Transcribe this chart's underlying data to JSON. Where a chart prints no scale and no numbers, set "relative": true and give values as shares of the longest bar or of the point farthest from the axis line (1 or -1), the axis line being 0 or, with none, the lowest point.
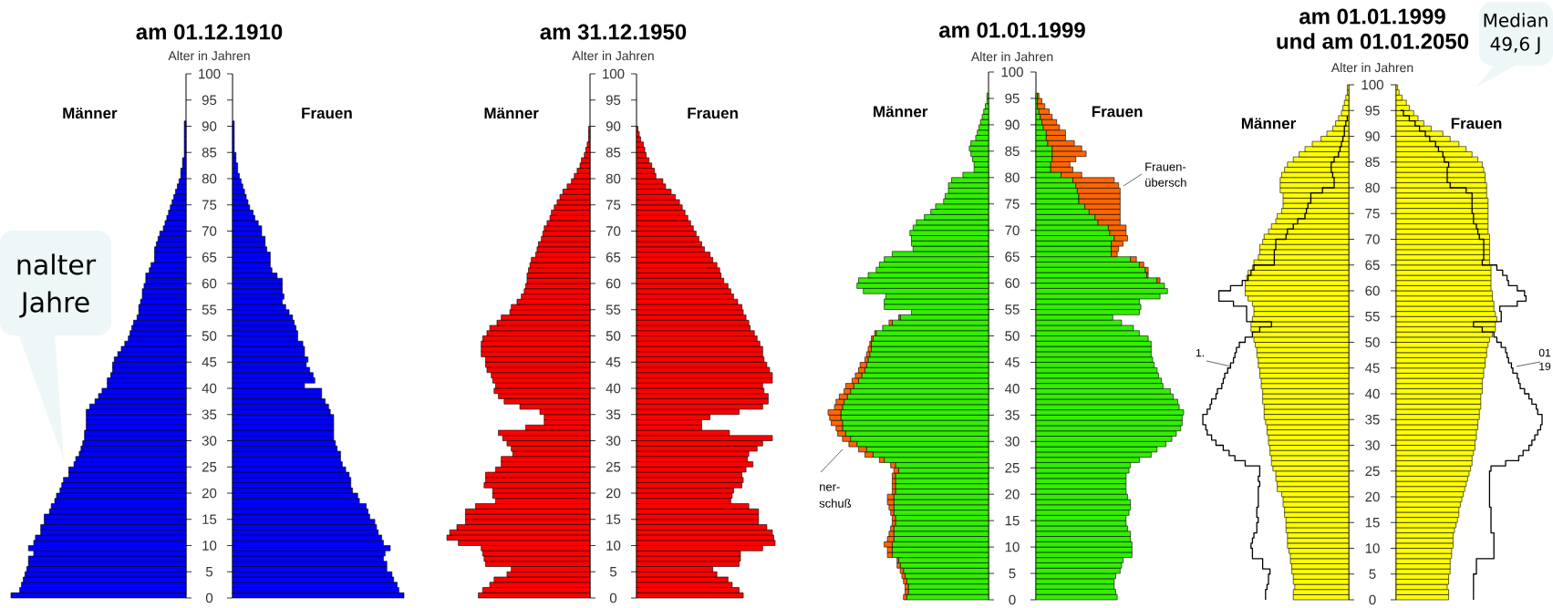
{
  "chart_data": [
    {
      "type": "bar",
      "orientation": "horizontal",
      "relative": true,
      "title": "am 01.12.1910",
      "ylabel": "Alter in Jahren",
      "ylim": [
        0,
        100
      ],
      "yticks": [
        0,
        5,
        10,
        15,
        20,
        25,
        30,
        35,
        40,
        45,
        50,
        55,
        60,
        65,
        70,
        75,
        80,
        85,
        90,
        95,
        100
      ],
      "x": [
        0,
        1,
        2,
        3,
        4,
        5,
        6,
        7,
        8,
        9,
        10,
        11,
        12,
        13,
        14,
        15,
        16,
        17,
        18,
        19,
        20,
        21,
        22,
        23,
        24,
        25,
        26,
        27,
        28,
        29,
        30,
        31,
        32,
        33,
        34,
        35,
        36,
        37,
        38,
        39,
        40,
        41,
        42,
        43,
        44,
        45,
        46,
        47,
        48,
        49,
        50,
        51,
        52,
        53,
        54,
        55,
        56,
        57,
        58,
        59,
        60,
        61,
        62,
        63,
        64,
        65,
        66,
        67,
        68,
        69,
        70,
        71,
        72,
        73,
        74,
        75,
        76,
        77,
        78,
        79,
        80,
        81,
        82,
        83,
        84,
        85,
        86,
        87,
        88,
        89,
        90
      ],
      "series": [
        {
          "name": "Männer",
          "color": "#0000ff",
          "values": [
            -1.0,
            -0.95,
            -0.94,
            -0.93,
            -0.92,
            -0.91,
            -0.9,
            -0.9,
            -0.87,
            -0.9,
            -0.87,
            -0.86,
            -0.83,
            -0.83,
            -0.81,
            -0.81,
            -0.78,
            -0.77,
            -0.75,
            -0.74,
            -0.72,
            -0.71,
            -0.7,
            -0.67,
            -0.67,
            -0.64,
            -0.63,
            -0.61,
            -0.6,
            -0.59,
            -0.58,
            -0.58,
            -0.57,
            -0.57,
            -0.57,
            -0.57,
            -0.55,
            -0.52,
            -0.5,
            -0.48,
            -0.45,
            -0.45,
            -0.43,
            -0.42,
            -0.42,
            -0.41,
            -0.39,
            -0.37,
            -0.35,
            -0.33,
            -0.32,
            -0.31,
            -0.3,
            -0.28,
            -0.27,
            -0.27,
            -0.26,
            -0.25,
            -0.25,
            -0.24,
            -0.23,
            -0.23,
            -0.21,
            -0.2,
            -0.18,
            -0.18,
            -0.18,
            -0.17,
            -0.16,
            -0.15,
            -0.13,
            -0.12,
            -0.11,
            -0.1,
            -0.09,
            -0.08,
            -0.07,
            -0.06,
            -0.05,
            -0.04,
            -0.03,
            -0.03,
            -0.02,
            -0.02,
            -0.01,
            -0.01,
            -0.01,
            -0.01,
            -0.01,
            -0.01,
            -0.01
          ]
        }
      ],
      "annotations": [
        "nalter",
        "Jahre"
      ]
    },
    {
      "type": "bar",
      "orientation": "horizontal",
      "relative": true,
      "tick_labels": false,
      "ylim": [
        0,
        100
      ],
      "yticks": [
        0,
        5,
        10,
        15,
        20,
        25,
        30,
        35,
        40,
        45,
        50,
        55,
        60,
        65,
        70,
        75,
        80,
        85,
        90,
        95,
        100
      ],
      "x": [
        0,
        1,
        2,
        3,
        4,
        5,
        6,
        7,
        8,
        9,
        10,
        11,
        12,
        13,
        14,
        15,
        16,
        17,
        18,
        19,
        20,
        21,
        22,
        23,
        24,
        25,
        26,
        27,
        28,
        29,
        30,
        31,
        32,
        33,
        34,
        35,
        36,
        37,
        38,
        39,
        40,
        41,
        42,
        43,
        44,
        45,
        46,
        47,
        48,
        49,
        50,
        51,
        52,
        53,
        54,
        55,
        56,
        57,
        58,
        59,
        60,
        61,
        62,
        63,
        64,
        65,
        66,
        67,
        68,
        69,
        70,
        71,
        72,
        73,
        74,
        75,
        76,
        77,
        78,
        79,
        80,
        81,
        82,
        83,
        84,
        85,
        86,
        87,
        88,
        89,
        90
      ],
      "series": [
        {
          "name": "Frauen",
          "color": "#0000ff",
          "values": [
            1.0,
            0.97,
            0.96,
            0.94,
            0.93,
            0.9,
            0.9,
            0.88,
            0.89,
            0.92,
            0.88,
            0.87,
            0.85,
            0.84,
            0.83,
            0.8,
            0.79,
            0.78,
            0.74,
            0.73,
            0.7,
            0.69,
            0.69,
            0.68,
            0.66,
            0.64,
            0.63,
            0.63,
            0.61,
            0.6,
            0.59,
            0.59,
            0.59,
            0.59,
            0.59,
            0.57,
            0.56,
            0.54,
            0.52,
            0.52,
            0.42,
            0.48,
            0.47,
            0.45,
            0.43,
            0.44,
            0.42,
            0.42,
            0.41,
            0.38,
            0.38,
            0.37,
            0.36,
            0.35,
            0.33,
            0.31,
            0.29,
            0.3,
            0.29,
            0.29,
            0.29,
            0.26,
            0.23,
            0.22,
            0.22,
            0.22,
            0.2,
            0.19,
            0.19,
            0.17,
            0.17,
            0.15,
            0.13,
            0.12,
            0.1,
            0.09,
            0.08,
            0.07,
            0.06,
            0.05,
            0.04,
            0.03,
            0.03,
            0.02,
            0.02,
            0.01,
            0.01,
            0.01,
            0.01,
            0.01,
            0.01
          ]
        }
      ]
    },
    {
      "type": "bar",
      "orientation": "horizontal",
      "relative": true,
      "title": "am 31.12.1950",
      "ylabel": "Alter in Jahren",
      "ylim": [
        0,
        100
      ],
      "yticks": [
        0,
        5,
        10,
        15,
        20,
        25,
        30,
        35,
        40,
        45,
        50,
        55,
        60,
        65,
        70,
        75,
        80,
        85,
        90,
        95,
        100
      ],
      "x": [
        0,
        1,
        2,
        3,
        4,
        5,
        6,
        7,
        8,
        9,
        10,
        11,
        12,
        13,
        14,
        15,
        16,
        17,
        18,
        19,
        20,
        21,
        22,
        23,
        24,
        25,
        26,
        27,
        28,
        29,
        30,
        31,
        32,
        33,
        34,
        35,
        36,
        37,
        38,
        39,
        40,
        41,
        42,
        43,
        44,
        45,
        46,
        47,
        48,
        49,
        50,
        51,
        52,
        53,
        54,
        55,
        56,
        57,
        58,
        59,
        60,
        61,
        62,
        63,
        64,
        65,
        66,
        67,
        68,
        69,
        70,
        71,
        72,
        73,
        74,
        75,
        76,
        77,
        78,
        79,
        80,
        81,
        82,
        83,
        84,
        85,
        86,
        87,
        88,
        89
      ],
      "series": [
        {
          "name": "Männer",
          "color": "#ff0000",
          "values": [
            -0.78,
            -0.75,
            -0.7,
            -0.67,
            -0.58,
            -0.55,
            -0.73,
            -0.74,
            -0.75,
            -0.76,
            -0.92,
            -1.0,
            -0.98,
            -0.93,
            -0.87,
            -0.87,
            -0.87,
            -0.8,
            -0.66,
            -0.68,
            -0.68,
            -0.74,
            -0.73,
            -0.73,
            -0.66,
            -0.62,
            -0.62,
            -0.54,
            -0.55,
            -0.58,
            -0.61,
            -0.64,
            -0.45,
            -0.32,
            -0.32,
            -0.35,
            -0.49,
            -0.6,
            -0.64,
            -0.67,
            -0.66,
            -0.68,
            -0.69,
            -0.72,
            -0.73,
            -0.73,
            -0.76,
            -0.76,
            -0.76,
            -0.75,
            -0.72,
            -0.7,
            -0.65,
            -0.62,
            -0.56,
            -0.55,
            -0.51,
            -0.48,
            -0.46,
            -0.45,
            -0.44,
            -0.44,
            -0.43,
            -0.42,
            -0.41,
            -0.38,
            -0.37,
            -0.36,
            -0.34,
            -0.33,
            -0.32,
            -0.3,
            -0.28,
            -0.27,
            -0.25,
            -0.23,
            -0.21,
            -0.19,
            -0.16,
            -0.13,
            -0.11,
            -0.09,
            -0.07,
            -0.06,
            -0.04,
            -0.03,
            -0.02,
            -0.01,
            -0.01,
            -0.01
          ]
        }
      ]
    },
    {
      "type": "bar",
      "orientation": "horizontal",
      "relative": true,
      "tick_labels": false,
      "ylim": [
        0,
        100
      ],
      "yticks": [
        0,
        5,
        10,
        15,
        20,
        25,
        30,
        35,
        40,
        45,
        50,
        55,
        60,
        65,
        70,
        75,
        80,
        85,
        90,
        95,
        100
      ],
      "x": [
        0,
        1,
        2,
        3,
        4,
        5,
        6,
        7,
        8,
        9,
        10,
        11,
        12,
        13,
        14,
        15,
        16,
        17,
        18,
        19,
        20,
        21,
        22,
        23,
        24,
        25,
        26,
        27,
        28,
        29,
        30,
        31,
        32,
        33,
        34,
        35,
        36,
        37,
        38,
        39,
        40,
        41,
        42,
        43,
        44,
        45,
        46,
        47,
        48,
        49,
        50,
        51,
        52,
        53,
        54,
        55,
        56,
        57,
        58,
        59,
        60,
        61,
        62,
        63,
        64,
        65,
        66,
        67,
        68,
        69,
        70,
        71,
        72,
        73,
        74,
        75,
        76,
        77,
        78,
        79,
        80,
        81,
        82,
        83,
        84,
        85,
        86,
        87,
        88,
        89
      ],
      "series": [
        {
          "name": "Frauen",
          "color": "#ff0000",
          "values": [
            0.77,
            0.74,
            0.69,
            0.66,
            0.58,
            0.55,
            0.74,
            0.75,
            0.75,
            0.91,
            1.0,
            0.99,
            0.98,
            0.94,
            0.88,
            0.88,
            0.88,
            0.81,
            0.68,
            0.69,
            0.7,
            0.76,
            0.77,
            0.76,
            0.79,
            0.84,
            0.8,
            0.81,
            0.87,
            0.91,
            0.98,
            0.67,
            0.47,
            0.47,
            0.53,
            0.74,
            0.91,
            0.95,
            0.95,
            0.92,
            0.91,
            0.98,
            0.98,
            0.96,
            0.94,
            0.92,
            0.91,
            0.91,
            0.89,
            0.87,
            0.85,
            0.82,
            0.81,
            0.79,
            0.77,
            0.76,
            0.73,
            0.7,
            0.68,
            0.66,
            0.63,
            0.61,
            0.6,
            0.58,
            0.55,
            0.53,
            0.49,
            0.47,
            0.45,
            0.43,
            0.41,
            0.39,
            0.37,
            0.35,
            0.33,
            0.31,
            0.28,
            0.25,
            0.21,
            0.19,
            0.14,
            0.13,
            0.11,
            0.09,
            0.07,
            0.06,
            0.05,
            0.03,
            0.02,
            0.01
          ]
        }
      ]
    },
    {
      "type": "bar",
      "orientation": "horizontal",
      "relative": true,
      "stacked": true,
      "title": "am 01.01.1999",
      "ylabel": "Alter in Jahren",
      "ylim": [
        0,
        100
      ],
      "yticks": [
        0,
        5,
        10,
        15,
        20,
        25,
        30,
        35,
        40,
        45,
        50,
        55,
        60,
        65,
        70,
        75,
        80,
        85,
        90,
        95,
        100
      ],
      "x": [
        0,
        1,
        2,
        3,
        4,
        5,
        6,
        7,
        8,
        9,
        10,
        11,
        12,
        13,
        14,
        15,
        16,
        17,
        18,
        19,
        20,
        21,
        22,
        23,
        24,
        25,
        26,
        27,
        28,
        29,
        30,
        31,
        32,
        33,
        34,
        35,
        36,
        37,
        38,
        39,
        40,
        41,
        42,
        43,
        44,
        45,
        46,
        47,
        48,
        49,
        50,
        51,
        52,
        53,
        54,
        55,
        56,
        57,
        58,
        59,
        60,
        61,
        62,
        63,
        64,
        65,
        66,
        67,
        68,
        69,
        70,
        71,
        72,
        73,
        74,
        75,
        76,
        77,
        78,
        79,
        80,
        81,
        82,
        83,
        84,
        85,
        86,
        87,
        88,
        89,
        90,
        91,
        92,
        93,
        94,
        95
      ],
      "series": [
        {
          "name": "Männer",
          "color": "#33ee00",
          "values": [
            -0.51,
            -0.5,
            -0.5,
            -0.51,
            -0.52,
            -0.53,
            -0.55,
            -0.56,
            -0.6,
            -0.6,
            -0.6,
            -0.59,
            -0.59,
            -0.59,
            -0.58,
            -0.58,
            -0.59,
            -0.59,
            -0.59,
            -0.59,
            -0.58,
            -0.58,
            -0.58,
            -0.58,
            -0.56,
            -0.58,
            -0.65,
            -0.72,
            -0.76,
            -0.82,
            -0.86,
            -0.89,
            -0.91,
            -0.91,
            -0.92,
            -0.92,
            -0.91,
            -0.9,
            -0.88,
            -0.86,
            -0.84,
            -0.81,
            -0.79,
            -0.77,
            -0.76,
            -0.75,
            -0.74,
            -0.73,
            -0.73,
            -0.72,
            -0.7,
            -0.66,
            -0.6,
            -0.55,
            -0.48,
            -0.65,
            -0.65,
            -0.64,
            -0.78,
            -0.82,
            -0.81,
            -0.75,
            -0.7,
            -0.68,
            -0.65,
            -0.6,
            -0.47,
            -0.48,
            -0.48,
            -0.49,
            -0.47,
            -0.45,
            -0.4,
            -0.36,
            -0.33,
            -0.28,
            -0.27,
            -0.25,
            -0.25,
            -0.23,
            -0.16,
            -0.09,
            -0.09,
            -0.1,
            -0.11,
            -0.12,
            -0.11,
            -0.08,
            -0.07,
            -0.06,
            -0.05,
            -0.04,
            -0.03,
            -0.02,
            -0.01,
            -0.01
          ]
        },
        {
          "color": "#ff6600",
          "values": [
            -0.02,
            -0.02,
            -0.02,
            -0.02,
            -0.02,
            -0.02,
            -0.02,
            -0.01,
            -0.03,
            -0.03,
            -0.05,
            -0.04,
            -0.03,
            -0.02,
            -0.02,
            -0.02,
            -0.02,
            -0.03,
            -0.04,
            -0.04,
            -0.02,
            -0.02,
            -0.02,
            -0.02,
            -0.03,
            -0.03,
            -0.03,
            -0.05,
            -0.05,
            -0.05,
            -0.05,
            -0.05,
            -0.04,
            -0.07,
            -0.07,
            -0.08,
            -0.05,
            -0.05,
            -0.05,
            -0.04,
            -0.05,
            -0.04,
            -0.04,
            -0.04,
            -0.04,
            -0.02,
            -0.02,
            -0.02,
            -0.01,
            -0.01,
            -0.01,
            null,
            -0.02,
            -0.01,
            null,
            null,
            null,
            null,
            null,
            null,
            null,
            null,
            null,
            null,
            null,
            null,
            null,
            null,
            null,
            null,
            null,
            null,
            null,
            null,
            null,
            null,
            null,
            null,
            null,
            null,
            null,
            null,
            null,
            null,
            null,
            null,
            null,
            null,
            null,
            null,
            null,
            null,
            null,
            null,
            null,
            null
          ]
        }
      ],
      "annotations": [
        "ner-",
        "schuß"
      ]
    },
    {
      "type": "bar",
      "orientation": "horizontal",
      "relative": true,
      "stacked": true,
      "tick_labels": false,
      "ylim": [
        0,
        100
      ],
      "yticks": [
        0,
        5,
        10,
        15,
        20,
        25,
        30,
        35,
        40,
        45,
        50,
        55,
        60,
        65,
        70,
        75,
        80,
        85,
        90,
        95,
        100
      ],
      "x": [
        0,
        1,
        2,
        3,
        4,
        5,
        6,
        7,
        8,
        9,
        10,
        11,
        12,
        13,
        14,
        15,
        16,
        17,
        18,
        19,
        20,
        21,
        22,
        23,
        24,
        25,
        26,
        27,
        28,
        29,
        30,
        31,
        32,
        33,
        34,
        35,
        36,
        37,
        38,
        39,
        40,
        41,
        42,
        43,
        44,
        45,
        46,
        47,
        48,
        49,
        50,
        51,
        52,
        53,
        54,
        55,
        56,
        57,
        58,
        59,
        60,
        61,
        62,
        63,
        64,
        65,
        66,
        67,
        68,
        69,
        70,
        71,
        72,
        73,
        74,
        75,
        76,
        77,
        78,
        79,
        80,
        81,
        82,
        83,
        84,
        85,
        86,
        87,
        88,
        89,
        90,
        91,
        92,
        93,
        94,
        95
      ],
      "series": [
        {
          "name": "Frauen",
          "color": "#33ee00",
          "values": [
            0.55,
            0.54,
            0.53,
            0.53,
            0.54,
            0.57,
            0.58,
            0.59,
            0.65,
            0.65,
            0.65,
            0.64,
            0.64,
            0.62,
            0.61,
            0.61,
            0.63,
            0.64,
            0.64,
            0.62,
            0.61,
            0.61,
            0.61,
            0.61,
            0.63,
            0.64,
            0.7,
            0.78,
            0.82,
            0.88,
            0.92,
            0.95,
            0.98,
            0.99,
            0.99,
            1.0,
            0.97,
            0.96,
            0.93,
            0.91,
            0.86,
            0.85,
            0.83,
            0.82,
            0.8,
            0.79,
            0.78,
            0.78,
            0.78,
            0.76,
            0.7,
            0.66,
            0.58,
            0.52,
            0.7,
            0.71,
            0.7,
            0.84,
            0.89,
            0.87,
            0.82,
            0.75,
            0.74,
            0.7,
            0.64,
            0.51,
            0.51,
            0.51,
            0.53,
            0.5,
            0.49,
            0.42,
            0.4,
            0.36,
            0.33,
            0.29,
            0.29,
            0.28,
            0.27,
            0.25,
            0.17,
            0.1,
            0.1,
            0.11,
            0.11,
            0.11,
            0.08,
            0.07,
            0.07,
            0.05,
            0.04,
            0.03,
            0.02,
            0.01,
            0.01,
            0.01
          ]
        },
        {
          "color": "#ff6600",
          "values": [
            null,
            null,
            null,
            null,
            null,
            null,
            null,
            null,
            null,
            null,
            null,
            null,
            null,
            null,
            null,
            null,
            null,
            null,
            null,
            null,
            null,
            null,
            null,
            null,
            null,
            null,
            null,
            null,
            null,
            null,
            null,
            null,
            null,
            null,
            null,
            null,
            null,
            null,
            null,
            null,
            null,
            null,
            null,
            null,
            null,
            null,
            null,
            null,
            null,
            null,
            null,
            null,
            null,
            null,
            null,
            null,
            null,
            null,
            null,
            null,
            0.02,
            0.01,
            0.02,
            0.03,
            0.04,
            0.04,
            0.05,
            0.08,
            0.09,
            0.11,
            0.12,
            0.15,
            0.17,
            0.21,
            0.24,
            0.28,
            0.28,
            0.29,
            0.29,
            0.28,
            0.14,
            0.15,
            0.13,
            0.16,
            0.23,
            0.2,
            0.18,
            0.13,
            0.13,
            0.11,
            0.1,
            0.08,
            0.07,
            0.05,
            0.03,
            0.01
          ]
        }
      ],
      "annotations": [
        "Frauen-",
        "übersch"
      ]
    },
    {
      "type": "bar",
      "orientation": "horizontal",
      "relative": true,
      "title": "am 01.01.1999",
      "subtitle": "und am 01.01.2050",
      "ylabel": "Alter in Jahren",
      "ylim": [
        0,
        100
      ],
      "yticks": [
        0,
        5,
        10,
        15,
        20,
        25,
        30,
        35,
        40,
        45,
        50,
        55,
        60,
        65,
        70,
        75,
        80,
        85,
        90,
        95,
        100
      ],
      "x": [
        0,
        1,
        2,
        3,
        4,
        5,
        6,
        7,
        8,
        9,
        10,
        11,
        12,
        13,
        14,
        15,
        16,
        17,
        18,
        19,
        20,
        21,
        22,
        23,
        24,
        25,
        26,
        27,
        28,
        29,
        30,
        31,
        32,
        33,
        34,
        35,
        36,
        37,
        38,
        39,
        40,
        41,
        42,
        43,
        44,
        45,
        46,
        47,
        48,
        49,
        50,
        51,
        52,
        53,
        54,
        55,
        56,
        57,
        58,
        59,
        60,
        61,
        62,
        63,
        64,
        65,
        66,
        67,
        68,
        69,
        70,
        71,
        72,
        73,
        74,
        75,
        76,
        77,
        78,
        79,
        80,
        81,
        82,
        83,
        84,
        85,
        86,
        87,
        88,
        89,
        90,
        91,
        92,
        93,
        94,
        95,
        96,
        97,
        98,
        99
      ],
      "series": [
        {
          "name": "Männer",
          "color": "#ffff00",
          "values": [
            -0.38,
            -0.38,
            -0.37,
            -0.38,
            -0.38,
            -0.39,
            -0.39,
            -0.4,
            -0.4,
            -0.41,
            -0.42,
            -0.42,
            -0.42,
            -0.43,
            -0.43,
            -0.43,
            -0.44,
            -0.44,
            -0.45,
            -0.45,
            -0.46,
            -0.49,
            -0.49,
            -0.5,
            -0.5,
            -0.52,
            -0.53,
            -0.53,
            -0.54,
            -0.54,
            -0.55,
            -0.55,
            -0.56,
            -0.56,
            -0.57,
            -0.58,
            -0.58,
            -0.58,
            -0.59,
            -0.59,
            -0.59,
            -0.6,
            -0.6,
            -0.61,
            -0.61,
            -0.62,
            -0.62,
            -0.63,
            -0.63,
            -0.64,
            -0.65,
            -0.66,
            -0.67,
            -0.67,
            -0.66,
            -0.65,
            -0.65,
            -0.66,
            -0.69,
            -0.71,
            -0.71,
            -0.71,
            -0.7,
            -0.69,
            -0.66,
            -0.65,
            -0.62,
            -0.61,
            -0.61,
            -0.59,
            -0.58,
            -0.55,
            -0.53,
            -0.5,
            -0.49,
            -0.46,
            -0.45,
            -0.45,
            -0.45,
            -0.47,
            -0.47,
            -0.47,
            -0.46,
            -0.44,
            -0.42,
            -0.38,
            -0.34,
            -0.3,
            -0.25,
            -0.19,
            -0.15,
            -0.11,
            -0.09,
            -0.07,
            -0.05,
            -0.04,
            -0.03,
            -0.02,
            -0.01,
            -0.01
          ]
        },
        {
          "type": "step",
          "color": "#000000",
          "values": [
            -0.57,
            -0.57,
            -0.56,
            -0.55,
            -0.55,
            -0.54,
            -0.59,
            -0.59,
            -0.66,
            -0.66,
            -0.67,
            -0.66,
            -0.65,
            -0.63,
            -0.63,
            -0.62,
            -0.63,
            -0.63,
            -0.62,
            -0.62,
            -0.62,
            -0.62,
            -0.61,
            -0.62,
            -0.61,
            -0.61,
            -0.71,
            -0.78,
            -0.82,
            -0.86,
            -0.91,
            -0.94,
            -0.97,
            -0.98,
            -1.0,
            -1.0,
            -0.97,
            -0.95,
            -0.94,
            -0.91,
            -0.9,
            -0.87,
            -0.86,
            -0.85,
            -0.83,
            -0.81,
            -0.79,
            -0.78,
            -0.77,
            -0.75,
            -0.71,
            -0.66,
            -0.61,
            -0.53,
            -0.7,
            -0.7,
            -0.7,
            -0.79,
            -0.89,
            -0.89,
            -0.81,
            -0.73,
            -0.69,
            -0.67,
            -0.65,
            -0.51,
            -0.51,
            -0.51,
            -0.5,
            -0.5,
            -0.43,
            -0.42,
            -0.38,
            -0.35,
            -0.3,
            -0.29,
            -0.28,
            -0.26,
            -0.26,
            -0.18,
            -0.1,
            -0.1,
            -0.11,
            -0.12,
            -0.12,
            -0.1,
            -0.07,
            -0.06,
            -0.05,
            -0.04,
            -0.03,
            -0.03,
            -0.02,
            -0.01,
            -0.01,
            null,
            null,
            null,
            null,
            null
          ]
        }
      ],
      "annotations": [
        "1."
      ]
    },
    {
      "type": "bar",
      "orientation": "horizontal",
      "relative": true,
      "tick_labels": false,
      "ylim": [
        0,
        100
      ],
      "yticks": [
        0,
        5,
        10,
        15,
        20,
        25,
        30,
        35,
        40,
        45,
        50,
        55,
        60,
        65,
        70,
        75,
        80,
        85,
        90,
        95,
        100
      ],
      "x": [
        0,
        1,
        2,
        3,
        4,
        5,
        6,
        7,
        8,
        9,
        10,
        11,
        12,
        13,
        14,
        15,
        16,
        17,
        18,
        19,
        20,
        21,
        22,
        23,
        24,
        25,
        26,
        27,
        28,
        29,
        30,
        31,
        32,
        33,
        34,
        35,
        36,
        37,
        38,
        39,
        40,
        41,
        42,
        43,
        44,
        45,
        46,
        47,
        48,
        49,
        50,
        51,
        52,
        53,
        54,
        55,
        56,
        57,
        58,
        59,
        60,
        61,
        62,
        63,
        64,
        65,
        66,
        67,
        68,
        69,
        70,
        71,
        72,
        73,
        74,
        75,
        76,
        77,
        78,
        79,
        80,
        81,
        82,
        83,
        84,
        85,
        86,
        87,
        88,
        89,
        90,
        91,
        92,
        93,
        94,
        95,
        96,
        97,
        98,
        99
      ],
      "series": [
        {
          "name": "Frauen",
          "color": "#ffff00",
          "values": [
            0.36,
            0.36,
            0.35,
            0.36,
            0.36,
            0.37,
            0.37,
            0.37,
            0.38,
            0.38,
            0.39,
            0.39,
            0.39,
            0.4,
            0.41,
            0.42,
            0.43,
            0.43,
            0.44,
            0.45,
            0.46,
            0.47,
            0.48,
            0.49,
            0.5,
            0.51,
            0.52,
            0.52,
            0.53,
            0.54,
            0.54,
            0.55,
            0.55,
            0.56,
            0.56,
            0.57,
            0.57,
            0.58,
            0.58,
            0.58,
            0.59,
            0.59,
            0.59,
            0.6,
            0.6,
            0.61,
            0.61,
            0.62,
            0.62,
            0.63,
            0.64,
            0.66,
            0.68,
            0.68,
            0.69,
            0.68,
            0.67,
            0.67,
            0.66,
            0.66,
            0.65,
            0.65,
            0.65,
            0.65,
            0.65,
            0.64,
            0.64,
            0.64,
            0.64,
            0.64,
            0.64,
            0.63,
            0.63,
            0.63,
            0.63,
            0.63,
            0.63,
            0.63,
            0.62,
            0.62,
            0.62,
            0.61,
            0.61,
            0.6,
            0.59,
            0.56,
            0.52,
            0.48,
            0.43,
            0.37,
            0.32,
            0.24,
            0.19,
            0.15,
            0.12,
            0.09,
            0.07,
            0.04,
            0.02,
            0.01
          ]
        },
        {
          "type": "step",
          "color": "#000000",
          "values": [
            0.53,
            0.53,
            0.53,
            0.53,
            0.53,
            0.55,
            0.55,
            0.55,
            0.67,
            0.67,
            0.67,
            0.67,
            0.67,
            0.65,
            0.65,
            0.65,
            0.65,
            0.65,
            0.64,
            0.64,
            0.64,
            0.64,
            0.64,
            0.64,
            0.64,
            0.65,
            0.75,
            0.84,
            0.87,
            0.91,
            0.93,
            0.95,
            0.97,
            0.99,
            1.0,
            1.0,
            0.97,
            0.96,
            0.93,
            0.91,
            0.88,
            0.85,
            0.84,
            0.83,
            0.8,
            0.79,
            0.77,
            0.76,
            0.75,
            0.72,
            0.69,
            0.67,
            0.59,
            0.53,
            0.72,
            0.72,
            0.71,
            0.83,
            0.89,
            0.88,
            0.83,
            0.77,
            0.76,
            0.73,
            0.69,
            0.59,
            0.6,
            0.6,
            0.6,
            0.6,
            0.57,
            0.56,
            0.55,
            0.53,
            0.53,
            0.52,
            0.52,
            0.52,
            0.52,
            0.48,
            0.37,
            0.35,
            0.35,
            0.35,
            0.36,
            0.33,
            0.32,
            0.29,
            0.27,
            0.23,
            0.2,
            0.16,
            0.13,
            0.09,
            0.05,
            0.03,
            null,
            null,
            null,
            null
          ]
        }
      ],
      "annotations": [
        "Median",
        "49,6 J",
        "01",
        "19"
      ]
    }
  ]
}
